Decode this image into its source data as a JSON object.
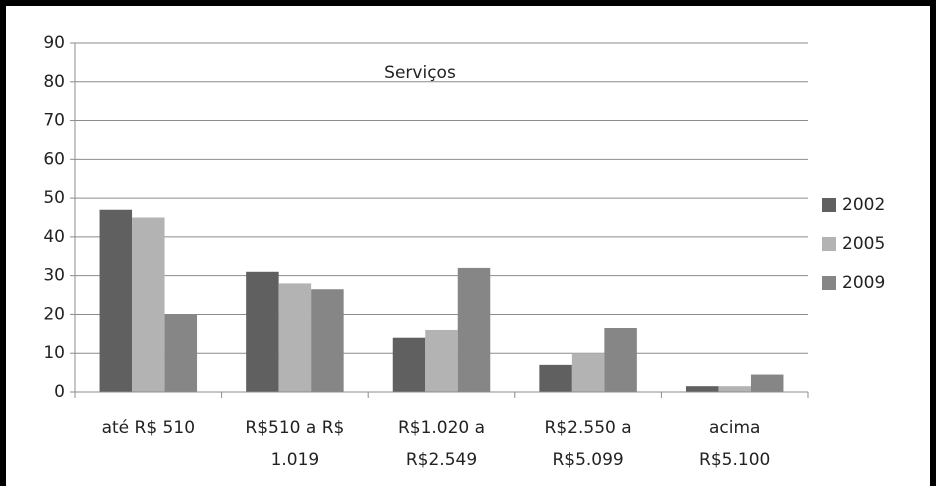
{
  "chart_data": {
    "type": "bar",
    "title": "Serviços",
    "categories": [
      "até R$ 510",
      "R$510 a R$\n1.019",
      "R$1.020 a\nR$2.549",
      "R$2.550 a\nR$5.099",
      "acima\nR$5.100"
    ],
    "series": [
      {
        "name": "2002",
        "color": "#606060",
        "values": [
          47,
          31,
          14,
          7,
          1.5
        ]
      },
      {
        "name": "2005",
        "color": "#b3b3b3",
        "values": [
          45,
          28,
          16,
          10,
          1.5
        ]
      },
      {
        "name": "2009",
        "color": "#868686",
        "values": [
          20,
          26.5,
          32,
          16.5,
          4.5
        ]
      }
    ],
    "ylim": [
      0,
      90
    ],
    "yticks": [
      0,
      10,
      20,
      30,
      40,
      50,
      60,
      70,
      80,
      90
    ],
    "grid": true,
    "legend": "right"
  }
}
